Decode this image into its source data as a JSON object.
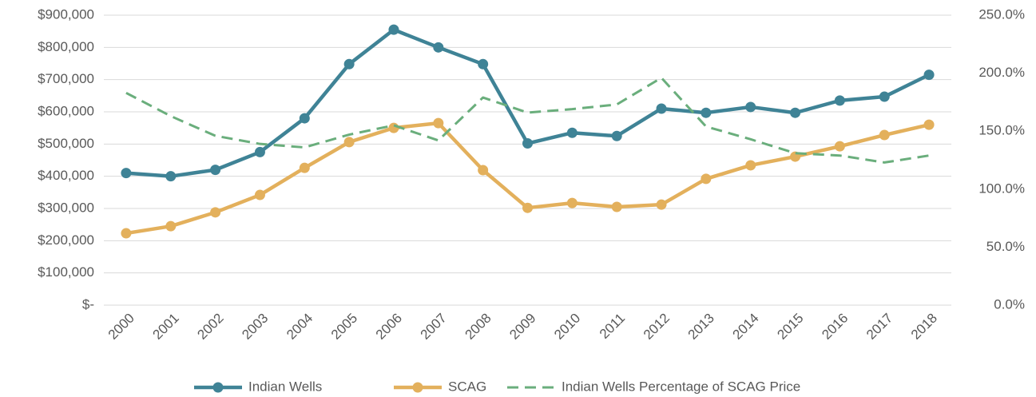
{
  "chart_data": {
    "type": "line",
    "categories": [
      "2000",
      "2001",
      "2002",
      "2003",
      "2004",
      "2005",
      "2006",
      "2007",
      "2008",
      "2009",
      "2010",
      "2011",
      "2012",
      "2013",
      "2014",
      "2015",
      "2016",
      "2017",
      "2018"
    ],
    "series": [
      {
        "name": "Indian Wells",
        "color": "#3f8396",
        "marker": true,
        "values": [
          410000,
          400000,
          420000,
          475000,
          580000,
          748000,
          855000,
          800000,
          748000,
          502000,
          535000,
          525000,
          610000,
          597000,
          615000,
          597000,
          635000,
          647000,
          715000
        ]
      },
      {
        "name": "SCAG",
        "color": "#e3b05c",
        "marker": true,
        "values": [
          223000,
          245000,
          288000,
          342000,
          426000,
          506000,
          550000,
          565000,
          419000,
          302000,
          317000,
          305000,
          312000,
          392000,
          434000,
          461000,
          493000,
          528000,
          560000
        ]
      },
      {
        "name": "Indian Wells Percentage of SCAG Price",
        "color": "#6aae7c",
        "dashed": true,
        "axis": "y2",
        "values": [
          183,
          163,
          146,
          139,
          136,
          147,
          155,
          142,
          179,
          166,
          169,
          173,
          196,
          154,
          143,
          131,
          129,
          123,
          129
        ]
      }
    ],
    "ylim": [
      0,
      900000
    ],
    "yticks": [
      {
        "value": 0,
        "label": "$-"
      },
      {
        "value": 100000,
        "label": "$100,000"
      },
      {
        "value": 200000,
        "label": "$200,000"
      },
      {
        "value": 300000,
        "label": "$300,000"
      },
      {
        "value": 400000,
        "label": "$400,000"
      },
      {
        "value": 500000,
        "label": "$500,000"
      },
      {
        "value": 600000,
        "label": "$600,000"
      },
      {
        "value": 700000,
        "label": "$700,000"
      },
      {
        "value": 800000,
        "label": "$800,000"
      },
      {
        "value": 900000,
        "label": "$900,000"
      }
    ],
    "y2lim": [
      0,
      250
    ],
    "y2ticks": [
      {
        "value": 0,
        "label": "0.0%"
      },
      {
        "value": 50,
        "label": "50.0%"
      },
      {
        "value": 100,
        "label": "100.0%"
      },
      {
        "value": 150,
        "label": "150.0%"
      },
      {
        "value": 200,
        "label": "200.0%"
      },
      {
        "value": 250,
        "label": "250.0%"
      }
    ],
    "grid": true,
    "legend": "bottom"
  }
}
